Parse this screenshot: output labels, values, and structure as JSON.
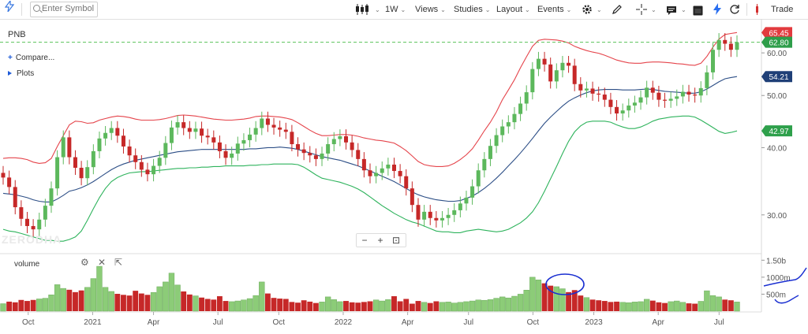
{
  "toolbar": {
    "search_placeholder": "Enter Symbol",
    "interval": "1W",
    "views": "Views",
    "studies": "Studies",
    "layout": "Layout",
    "events": "Events",
    "trade": "Trade",
    "icons": [
      "lightning-icon",
      "search-icon",
      "candlestick-icon",
      "gear-icon",
      "pencil-icon",
      "crosshair-icon",
      "comment-icon",
      "square-icon",
      "flash-icon",
      "refresh-icon",
      "trade-icon"
    ]
  },
  "sidebar": {
    "symbol": "PNB",
    "compare": "Compare...",
    "plots": "Plots"
  },
  "volume_label": "volume",
  "zoom": {
    "minus": "−",
    "plus": "+",
    "fit": "⊡"
  },
  "watermark": "ZERODHA",
  "colors": {
    "up": "#5cb85c",
    "up_fill": "#8ccc78",
    "down": "#c62828",
    "upper_band": "#e5444b",
    "lower_band": "#2eb35c",
    "mid_band": "#2c4e86",
    "last_price": "#2e9e4a",
    "upper_tag": "#e23a3e",
    "mid_tag": "#1f3f77",
    "lower_tag": "#2ea04b",
    "annotation": "#1a2fd1",
    "guide": "#59c25a"
  },
  "chart_data": {
    "type": "candlestick",
    "symbol": "PNB",
    "interval": "1W",
    "y_scale": "log",
    "ylim": [
      25.5,
      68
    ],
    "y_ticks": [
      "30.00",
      "40.00",
      "50.00",
      "60.00"
    ],
    "x_ticks": [
      "Oct",
      "2021",
      "Apr",
      "Jul",
      "Oct",
      "2022",
      "Apr",
      "Jul",
      "Oct",
      "2023",
      "Apr",
      "Jul"
    ],
    "price_tags": {
      "upper_band": "65.45",
      "last": "62.80",
      "middle_band": "54.21",
      "lower_band": "42.97"
    },
    "volume_ticks": [
      "1.50b",
      "1000m",
      "500m"
    ],
    "volume_max": 1.6,
    "close": [
      35.2,
      33.8,
      31,
      29.5,
      28.6,
      28.2,
      29.4,
      31.2,
      33.6,
      38.4,
      41.8,
      38.4,
      36.7,
      35.1,
      36.8,
      39.4,
      41.6,
      42.6,
      43.5,
      42.1,
      40.2,
      38.7,
      37.6,
      36.4,
      35.7,
      37,
      38.3,
      40.8,
      43.6,
      44.6,
      43.5,
      42.8,
      43.4,
      42.1,
      41.8,
      40.9,
      39.4,
      38.3,
      39,
      40.7,
      41.3,
      42.3,
      43.5,
      45.3,
      44.1,
      43.6,
      43.2,
      42.8,
      40.6,
      39.7,
      39.1,
      38.7,
      38.1,
      39,
      40.6,
      41.5,
      42,
      40.9,
      39.6,
      38.1,
      36.3,
      35.4,
      35.9,
      36.6,
      37.2,
      36.2,
      35.4,
      33.6,
      31.3,
      29.4,
      30.4,
      29.6,
      29.3,
      29.6,
      30,
      30.6,
      31.5,
      32.3,
      33.9,
      36.3,
      38.1,
      40.3,
      42.2,
      43.8,
      44.6,
      46.2,
      48.3,
      50.7,
      56,
      58.5,
      57.1,
      53.1,
      55.7,
      57.5,
      56.8,
      52.5,
      51.1,
      51.5,
      50.4,
      50.2,
      49.1,
      47.6,
      46.3,
      46.9,
      47.9,
      48.5,
      49.6,
      51.7,
      50.6,
      49.1,
      48.9,
      49.3,
      49.8,
      50.8,
      50.2,
      50,
      51.6,
      55.2,
      60.8,
      63.4,
      62.4,
      60.8,
      62.8
    ],
    "upper_band": [
      38.2,
      38.3,
      38.3,
      38.2,
      38,
      37.6,
      37.4,
      37.5,
      38.2,
      40.2,
      42.1,
      44.1,
      44.8,
      44.7,
      44.4,
      44.5,
      45,
      45.3,
      45.6,
      45.8,
      45.7,
      45.5,
      45.2,
      45,
      45,
      45,
      45.1,
      45.3,
      45.6,
      45.9,
      46,
      45.9,
      45.8,
      45.6,
      45.4,
      45.2,
      45.1,
      45,
      45,
      45.1,
      45.2,
      45.4,
      45.7,
      45.8,
      45.8,
      45.7,
      45.6,
      45.4,
      45.1,
      44.5,
      43.8,
      43.1,
      42.5,
      42.1,
      42.1,
      42.2,
      42.3,
      42.3,
      42.2,
      42,
      41.7,
      41.5,
      41.3,
      41.2,
      41,
      40.8,
      40.2,
      39.5,
      38.6,
      37.7,
      37.2,
      37,
      36.9,
      36.9,
      37,
      37.4,
      38,
      38.8,
      39.8,
      41.3,
      43,
      44.6,
      46.6,
      49.1,
      51.2,
      53.5,
      56.3,
      59,
      61.7,
      63.3,
      63.6,
      63.5,
      63.4,
      63.1,
      62.6,
      61.7,
      61.1,
      60.6,
      60.2,
      59.9,
      59.4,
      58.8,
      58.2,
      57.8,
      57.5,
      57.4,
      57.4,
      57.6,
      57.7,
      57.7,
      57.6,
      57.5,
      57.3,
      57.2,
      57,
      56.9,
      57.4,
      59.1,
      61.5,
      63.6,
      64.9,
      65.2,
      65.45
    ],
    "middle_band": [
      32.9,
      32.8,
      32.7,
      32.5,
      32.3,
      32,
      31.8,
      31.7,
      31.7,
      32.1,
      32.6,
      33.2,
      33.4,
      33.7,
      34.1,
      34.6,
      35.2,
      35.8,
      36.4,
      36.9,
      37.3,
      37.6,
      37.9,
      38.1,
      38.3,
      38.5,
      38.7,
      38.9,
      39.1,
      39.3,
      39.4,
      39.5,
      39.6,
      39.7,
      39.7,
      39.7,
      39.7,
      39.7,
      39.7,
      39.7,
      39.7,
      39.8,
      39.8,
      39.9,
      40,
      40,
      40.1,
      40,
      39.9,
      39.7,
      39.4,
      39.1,
      38.8,
      38.5,
      38.3,
      38.1,
      37.9,
      37.6,
      37.3,
      37,
      36.6,
      36.2,
      35.8,
      35.4,
      35,
      34.6,
      34.1,
      33.6,
      33.1,
      32.7,
      32.4,
      32.2,
      32,
      31.9,
      31.8,
      31.8,
      31.9,
      32.2,
      32.5,
      33,
      33.6,
      34.3,
      35.1,
      36,
      37,
      38,
      39.1,
      40.3,
      41.6,
      43,
      44.4,
      45.6,
      46.7,
      47.8,
      48.8,
      49.5,
      50.1,
      50.6,
      51,
      51.2,
      51.3,
      51.3,
      51.3,
      51.2,
      51.2,
      51.2,
      51.3,
      51.4,
      51.3,
      51.1,
      50.9,
      50.8,
      50.7,
      50.6,
      50.5,
      50.5,
      50.8,
      51.4,
      52.2,
      53,
      53.7,
      54,
      54.21
    ],
    "lower_band": [
      28.2,
      28,
      27.9,
      27.7,
      27.5,
      27.3,
      27.1,
      26.9,
      26.9,
      26.8,
      26.8,
      27,
      27.3,
      28,
      29.3,
      30.8,
      32.3,
      33.6,
      34.6,
      35.2,
      35.6,
      35.9,
      36,
      36.1,
      36.1,
      36.2,
      36.3,
      36.4,
      36.5,
      36.6,
      36.6,
      36.7,
      36.7,
      36.8,
      36.8,
      36.9,
      36.9,
      37,
      37,
      37,
      37,
      37.1,
      37.1,
      37.2,
      37.2,
      37.3,
      37.3,
      37.3,
      37.3,
      37.2,
      36.8,
      36.2,
      35.6,
      35.1,
      34.9,
      34.7,
      34.5,
      34.2,
      33.9,
      33.5,
      33,
      32.4,
      31.8,
      31.2,
      30.7,
      30.2,
      29.8,
      29.4,
      29.1,
      28.9,
      28.6,
      28.3,
      28,
      27.9,
      27.9,
      27.8,
      27.8,
      28,
      28.1,
      28.2,
      28.1,
      28,
      27.9,
      28,
      28.2,
      28.6,
      29,
      29.6,
      30.4,
      31.6,
      33.2,
      35,
      36.9,
      39,
      41.1,
      42.8,
      43.9,
      44.6,
      44.8,
      44.8,
      44.8,
      44.6,
      44.1,
      43.7,
      43.4,
      43.4,
      43.7,
      44.2,
      44.8,
      45.2,
      45.4,
      45.6,
      45.7,
      45.8,
      45.8,
      45.6,
      45,
      44.3,
      43.6,
      42.9,
      42.5,
      42.7,
      42.97
    ],
    "volume": [
      0.22,
      0.28,
      0.26,
      0.33,
      0.3,
      0.33,
      0.36,
      0.38,
      0.48,
      0.78,
      0.67,
      0.63,
      0.56,
      0.61,
      0.7,
      0.96,
      1.32,
      0.7,
      0.58,
      0.51,
      0.48,
      0.46,
      0.6,
      0.52,
      0.48,
      0.55,
      0.72,
      0.86,
      1.12,
      0.77,
      0.58,
      0.49,
      0.45,
      0.4,
      0.36,
      0.34,
      0.44,
      0.3,
      0.28,
      0.3,
      0.33,
      0.37,
      0.46,
      0.86,
      0.52,
      0.39,
      0.37,
      0.36,
      0.27,
      0.25,
      0.32,
      0.28,
      0.24,
      0.27,
      0.42,
      0.34,
      0.28,
      0.3,
      0.26,
      0.25,
      0.27,
      0.29,
      0.33,
      0.3,
      0.34,
      0.44,
      0.29,
      0.36,
      0.22,
      0.3,
      0.26,
      0.24,
      0.29,
      0.26,
      0.27,
      0.24,
      0.26,
      0.28,
      0.3,
      0.33,
      0.32,
      0.34,
      0.38,
      0.42,
      0.39,
      0.44,
      0.5,
      0.62,
      1.0,
      0.92,
      0.82,
      0.75,
      0.72,
      0.66,
      0.56,
      0.62,
      0.46,
      0.4,
      0.34,
      0.32,
      0.3,
      0.27,
      0.28,
      0.26,
      0.25,
      0.27,
      0.28,
      0.35,
      0.31,
      0.26,
      0.24,
      0.28,
      0.3,
      0.26,
      0.23,
      0.22,
      0.29,
      0.6,
      0.46,
      0.42,
      0.34,
      0.32,
      0.27
    ]
  }
}
